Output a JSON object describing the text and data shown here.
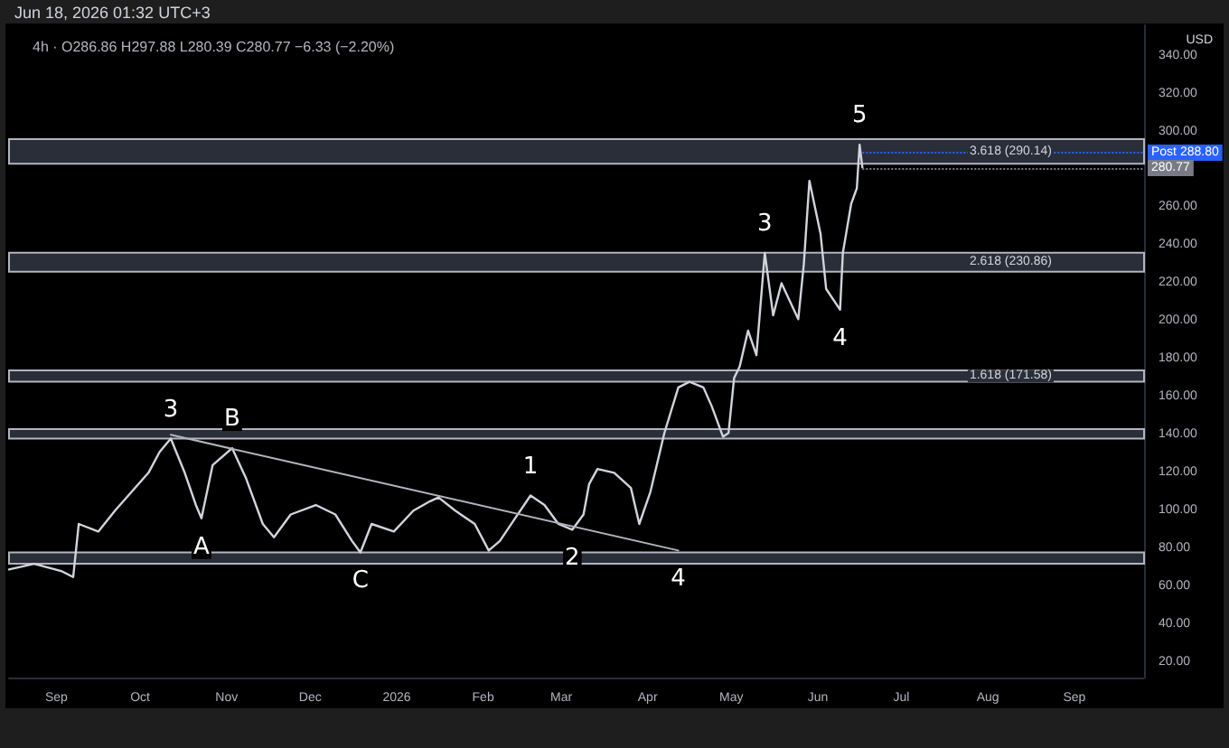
{
  "chart_data": {
    "type": "line",
    "title": "4h · O286.86 H297.88 L280.39 C280.77 −6.33 (−2.20%)",
    "subtitle": "Jun 18, 2026 01:32 UTC+3",
    "series": [
      {
        "color": "#d1d4dc",
        "x": [
          "2025-08-15",
          "2025-08-24",
          "2025-09-03",
          "2025-09-07",
          "2025-09-09",
          "2025-09-16",
          "2025-09-22",
          "2025-09-28",
          "2025-10-04",
          "2025-10-08",
          "2025-10-12",
          "2025-10-17",
          "2025-10-21",
          "2025-10-23",
          "2025-10-27",
          "2025-11-03",
          "2025-11-08",
          "2025-11-14",
          "2025-11-18",
          "2025-11-24",
          "2025-12-03",
          "2025-12-10",
          "2025-12-16",
          "2025-12-19",
          "2025-12-23",
          "2025-12-31",
          "2026-01-07",
          "2026-01-13",
          "2026-01-16",
          "2026-01-22",
          "2026-01-29",
          "2026-02-03",
          "2026-02-07",
          "2026-02-12",
          "2026-02-18",
          "2026-02-23",
          "2026-02-28",
          "2026-03-05",
          "2026-03-09",
          "2026-03-11",
          "2026-03-14",
          "2026-03-20",
          "2026-03-26",
          "2026-03-29",
          "2026-04-02",
          "2026-04-07",
          "2026-04-12",
          "2026-04-16",
          "2026-04-21",
          "2026-04-24",
          "2026-04-28",
          "2026-04-30",
          "2026-05-02",
          "2026-05-04",
          "2026-05-07",
          "2026-05-10",
          "2026-05-13",
          "2026-05-16",
          "2026-05-19",
          "2026-05-25",
          "2026-05-27",
          "2026-05-29",
          "2026-06-02",
          "2026-06-04",
          "2026-06-09",
          "2026-06-10",
          "2026-06-13",
          "2026-06-15",
          "2026-06-16",
          "2026-06-17"
        ],
        "values": [
          69,
          72,
          68,
          65,
          93,
          89,
          100,
          110,
          120,
          131,
          138,
          120,
          103,
          96,
          124,
          133,
          117,
          93,
          86,
          98,
          103,
          98,
          84,
          78,
          93,
          89,
          100,
          105,
          107,
          100,
          93,
          79,
          84,
          95,
          108,
          103,
          93,
          90,
          98,
          114,
          122,
          120,
          112,
          93,
          110,
          141,
          165,
          168,
          165,
          155,
          139,
          141,
          170,
          176,
          195,
          182,
          236,
          203,
          220,
          201,
          230,
          274,
          246,
          217,
          206,
          236,
          262,
          270,
          293,
          281
        ]
      },
      {
        "color": "#b2b5be",
        "x": [
          "2025-10-12",
          "2026-04-12"
        ],
        "values": [
          140,
          79
        ]
      }
    ],
    "xlim": [
      "2025-08-15",
      "2026-09-26"
    ],
    "xticks": [
      {
        "value": "2025-09-01",
        "label": "Sep"
      },
      {
        "value": "2025-10-01",
        "label": "Oct"
      },
      {
        "value": "2025-11-01",
        "label": "Nov"
      },
      {
        "value": "2025-12-01",
        "label": "Dec"
      },
      {
        "value": "2026-01-01",
        "label": "2026"
      },
      {
        "value": "2026-02-01",
        "label": "Feb"
      },
      {
        "value": "2026-03-01",
        "label": "Mar"
      },
      {
        "value": "2026-04-01",
        "label": "Apr"
      },
      {
        "value": "2026-05-01",
        "label": "May"
      },
      {
        "value": "2026-06-01",
        "label": "Jun"
      },
      {
        "value": "2026-07-01",
        "label": "Jul"
      },
      {
        "value": "2026-08-01",
        "label": "Aug"
      },
      {
        "value": "2026-09-01",
        "label": "Sep"
      }
    ],
    "ylim": [
      12,
      356
    ],
    "yticks": [
      {
        "value": 20,
        "label": "20.00"
      },
      {
        "value": 40,
        "label": "40.00"
      },
      {
        "value": 60,
        "label": "60.00"
      },
      {
        "value": 80,
        "label": "80.00"
      },
      {
        "value": 100,
        "label": "100.00"
      },
      {
        "value": 120,
        "label": "120.00"
      },
      {
        "value": 140,
        "label": "140.00"
      },
      {
        "value": 160,
        "label": "160.00"
      },
      {
        "value": 180,
        "label": "180.00"
      },
      {
        "value": 200,
        "label": "200.00"
      },
      {
        "value": 220,
        "label": "220.00"
      },
      {
        "value": 240,
        "label": "240.00"
      },
      {
        "value": 260,
        "label": "260.00"
      },
      {
        "value": 300,
        "label": "300.00"
      },
      {
        "value": 320,
        "label": "320.00"
      },
      {
        "value": 340,
        "label": "340.00"
      }
    ],
    "bands": [
      {
        "axis": "y",
        "from": 283,
        "to": 296,
        "label": "3.618 (290.14)",
        "color": "#2a2e39"
      },
      {
        "axis": "y",
        "from": 226,
        "to": 236,
        "label": "2.618 (230.86)",
        "color": "#2a2e39"
      },
      {
        "axis": "y",
        "from": 168,
        "to": 174,
        "label": "1.618 (171.58)",
        "color": "#2a2e39"
      },
      {
        "axis": "y",
        "from": 138,
        "to": 143,
        "label": null,
        "color": "#2a2e39"
      },
      {
        "axis": "y",
        "from": 72,
        "to": 78,
        "label": null,
        "color": "#2a2e39"
      }
    ],
    "ref_lines": [
      {
        "axis": "y",
        "value": 288.8,
        "label": "Post 288.80",
        "color": "#2962ff",
        "line_style": "dotted"
      },
      {
        "axis": "y",
        "value": 280.77,
        "label": "280.77",
        "color": "#787b86",
        "line_style": "dotted"
      }
    ],
    "annotations": [
      {
        "text": "3",
        "x": "2025-10-12",
        "y": 138
      },
      {
        "text": "A",
        "x": "2025-10-23",
        "y": 96
      },
      {
        "text": "B",
        "x": "2025-11-03",
        "y": 133
      },
      {
        "text": "C",
        "x": "2025-12-19",
        "y": 78
      },
      {
        "text": "1",
        "x": "2026-02-18",
        "y": 108
      },
      {
        "text": "2",
        "x": "2026-03-05",
        "y": 90
      },
      {
        "text": "4",
        "x": "2026-04-12",
        "y": 79
      },
      {
        "text": "3",
        "x": "2026-05-13",
        "y": 236
      },
      {
        "text": "4",
        "x": "2026-06-09",
        "y": 206
      },
      {
        "text": "5",
        "x": "2026-06-16",
        "y": 293
      },
      "USD"
    ],
    "grid": false,
    "marker": "none",
    "line_style": "solid"
  }
}
